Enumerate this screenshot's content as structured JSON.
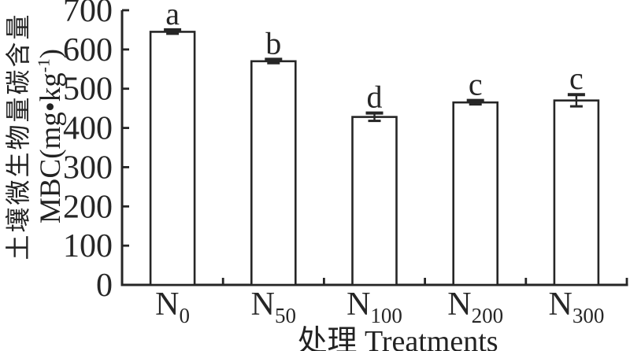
{
  "chart_data": {
    "type": "bar",
    "title": "",
    "categories": [
      {
        "base": "N",
        "sub": "0"
      },
      {
        "base": "N",
        "sub": "50"
      },
      {
        "base": "N",
        "sub": "100"
      },
      {
        "base": "N",
        "sub": "200"
      },
      {
        "base": "N",
        "sub": "300"
      }
    ],
    "values": [
      645,
      570,
      428,
      465,
      470
    ],
    "errors": [
      5,
      5,
      10,
      5,
      15
    ],
    "sig_letters": [
      "a",
      "b",
      "d",
      "c",
      "c"
    ],
    "yticks": [
      0,
      100,
      200,
      300,
      400,
      500,
      600,
      700
    ],
    "ylim": [
      0,
      700
    ],
    "grid": false,
    "legend": "none",
    "bar_fill": "#ffffff",
    "line_color": "#262626",
    "ylabel_line1": "土壤微生物量碳含量",
    "ylabel_line2": {
      "pre": "MBC(mg•kg",
      "sup": "-1",
      "post": ")"
    },
    "xlabel": "处理 Treatments"
  }
}
